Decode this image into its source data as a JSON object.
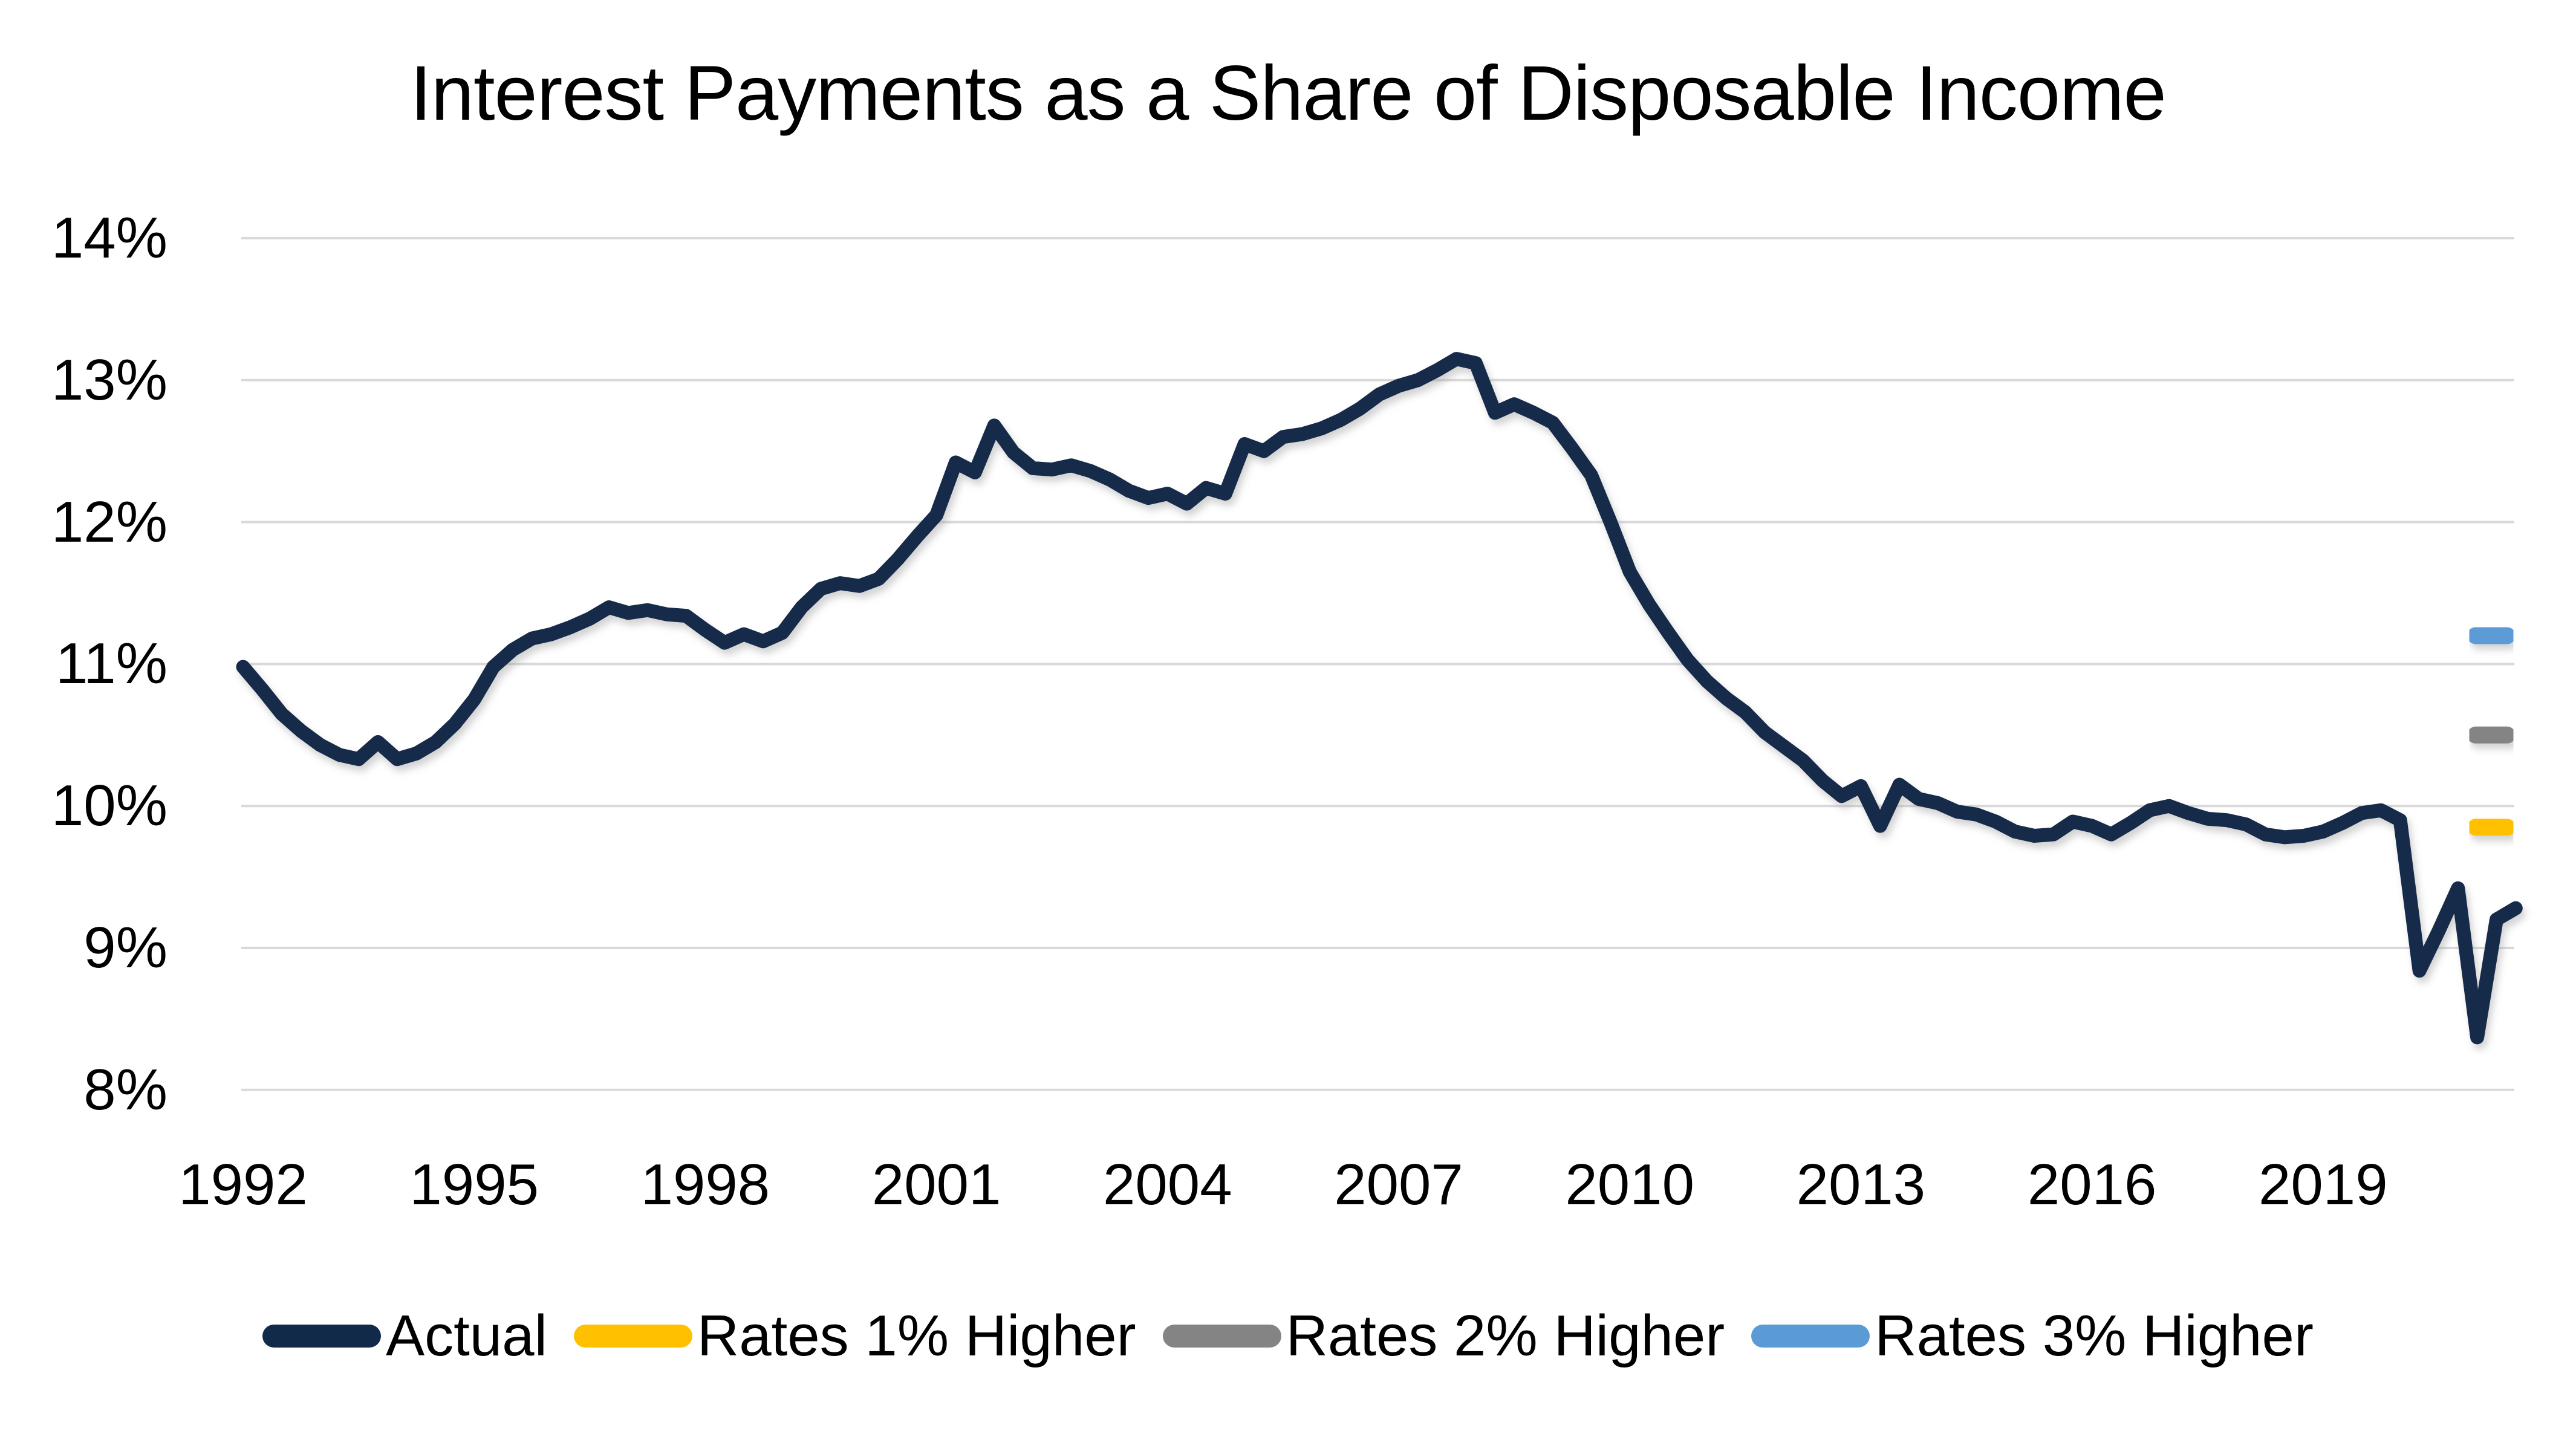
{
  "title": "Interest Payments as a Share of Disposable Income",
  "colors": {
    "actual": "#122A4A",
    "rates1": "#FFC000",
    "rates2": "#848484",
    "rates3": "#5B9BD5",
    "gridline": "#D9D9D9",
    "text": "#000000",
    "background": "#FFFFFF"
  },
  "legend": {
    "position": "bottom",
    "items": [
      {
        "label": "Actual",
        "color_key": "actual"
      },
      {
        "label": "Rates 1% Higher",
        "color_key": "rates1"
      },
      {
        "label": "Rates 2% Higher",
        "color_key": "rates2"
      },
      {
        "label": "Rates 3% Higher",
        "color_key": "rates3"
      }
    ]
  },
  "chart_data": {
    "type": "line",
    "title": "Interest Payments as a Share of Disposable Income",
    "xlabel": "",
    "ylabel": "",
    "grid": true,
    "legend_position": "bottom",
    "y_axis": {
      "range": [
        8,
        14
      ],
      "ticks": [
        {
          "label": "14%",
          "value": 14
        },
        {
          "label": "13%",
          "value": 13
        },
        {
          "label": "12%",
          "value": 12
        },
        {
          "label": "11%",
          "value": 11
        },
        {
          "label": "10%",
          "value": 10
        },
        {
          "label": "9%",
          "value": 9
        },
        {
          "label": "8%",
          "value": 8
        }
      ]
    },
    "x_axis": {
      "range_years": [
        1992.0,
        2021.5
      ],
      "ticks": [
        {
          "label": "1992",
          "value": 1992
        },
        {
          "label": "1995",
          "value": 1995
        },
        {
          "label": "1998",
          "value": 1998
        },
        {
          "label": "2001",
          "value": 2001
        },
        {
          "label": "2004",
          "value": 2004
        },
        {
          "label": "2007",
          "value": 2007
        },
        {
          "label": "2010",
          "value": 2010
        },
        {
          "label": "2013",
          "value": 2013
        },
        {
          "label": "2016",
          "value": 2016
        },
        {
          "label": "2019",
          "value": 2019
        }
      ]
    },
    "series": [
      {
        "name": "Actual",
        "frequency": "quarterly",
        "start": "1992Q1",
        "end": "2021Q3",
        "unit": "percent of disposable income",
        "values": [
          10.98,
          10.82,
          10.65,
          10.53,
          10.43,
          10.36,
          10.33,
          10.45,
          10.33,
          10.37,
          10.45,
          10.58,
          10.75,
          10.98,
          11.1,
          11.18,
          11.21,
          11.26,
          11.32,
          11.4,
          11.36,
          11.38,
          11.35,
          11.34,
          11.24,
          11.15,
          11.21,
          11.16,
          11.22,
          11.4,
          11.53,
          11.57,
          11.55,
          11.6,
          11.74,
          11.9,
          12.05,
          12.42,
          12.35,
          12.68,
          12.49,
          12.38,
          12.37,
          12.4,
          12.36,
          12.3,
          12.22,
          12.17,
          12.2,
          12.13,
          12.24,
          12.2,
          12.55,
          12.5,
          12.6,
          12.62,
          12.66,
          12.72,
          12.8,
          12.9,
          12.96,
          13.0,
          13.07,
          13.15,
          13.12,
          12.77,
          12.83,
          12.77,
          12.7,
          12.52,
          12.33,
          12.0,
          11.65,
          11.42,
          11.22,
          11.03,
          10.88,
          10.76,
          10.66,
          10.52,
          10.42,
          10.32,
          10.18,
          10.07,
          10.14,
          9.86,
          10.15,
          10.05,
          10.02,
          9.96,
          9.94,
          9.89,
          9.82,
          9.79,
          9.8,
          9.89,
          9.86,
          9.8,
          9.88,
          9.97,
          10.0,
          9.95,
          9.91,
          9.9,
          9.87,
          9.8,
          9.78,
          9.79,
          9.82,
          9.88,
          9.95,
          9.97,
          9.9,
          8.84,
          9.12,
          9.42,
          8.37,
          9.2,
          9.28
        ]
      }
    ],
    "scenario_markers": [
      {
        "label": "Rates 1% Higher",
        "value": 9.85,
        "color_key": "rates1"
      },
      {
        "label": "Rates 2% Higher",
        "value": 10.5,
        "color_key": "rates2"
      },
      {
        "label": "Rates 3% Higher",
        "value": 11.2,
        "color_key": "rates3"
      }
    ]
  }
}
